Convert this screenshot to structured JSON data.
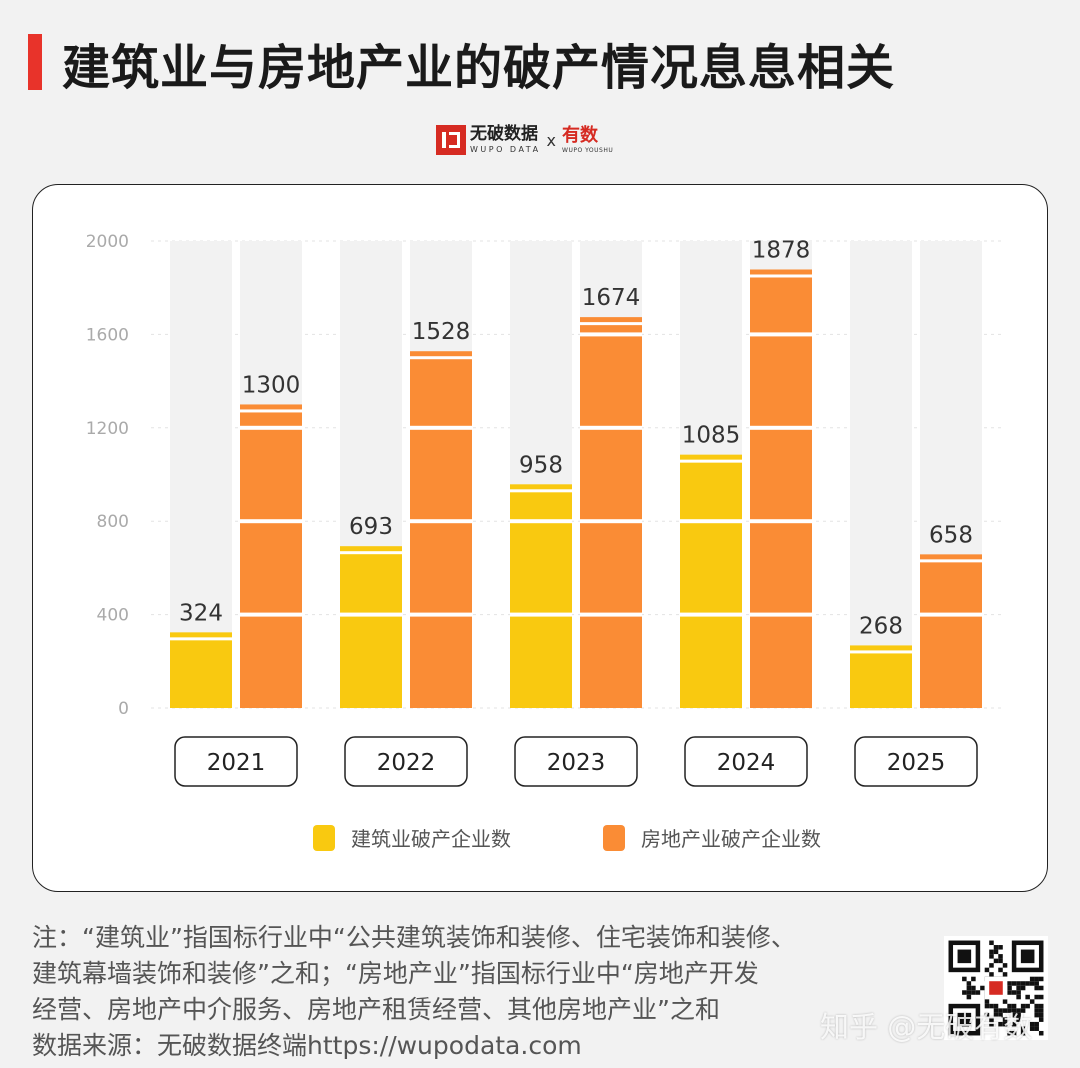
{
  "header": {
    "title": "建筑业与房地产业的破产情况息息相关",
    "brand_name": "无破数据",
    "brand_sub": "WUPO DATA",
    "brand_x": "x",
    "brand_name2": "有数",
    "brand_sub2": "WUPO YOUSHU"
  },
  "colors": {
    "accent": "#e8332a",
    "construction": "#f9c910",
    "real_estate": "#fa8c35",
    "band": "#f2f2f2",
    "tick_text": "#aaaaaa"
  },
  "chart_data": {
    "type": "bar",
    "categories": [
      "2021",
      "2022",
      "2023",
      "2024",
      "2025"
    ],
    "series": [
      {
        "name": "建筑业破产企业数",
        "values": [
          324,
          693,
          958,
          1085,
          268
        ]
      },
      {
        "name": "房地产业破产企业数",
        "values": [
          1300,
          1528,
          1674,
          1878,
          658
        ]
      }
    ],
    "yticks": [
      "0",
      "400",
      "800",
      "1200",
      "1600",
      "2000"
    ],
    "ylim": [
      0,
      2000
    ],
    "grid": true,
    "legend_position": "bottom"
  },
  "footer": {
    "note_lines": [
      "注：“建筑业”指国标行业中“公共建筑装饰和装修、住宅装饰和装修、",
      "建筑幕墙装饰和装修”之和；“房地产业”指国标行业中“房地产开发",
      "经营、房地产中介服务、房地产租赁经营、其他房地产业”之和",
      "数据来源：无破数据终端https://wupodata.com"
    ],
    "watermark": "知乎 @无破有数",
    "qr_icon": "qr-code-icon"
  }
}
